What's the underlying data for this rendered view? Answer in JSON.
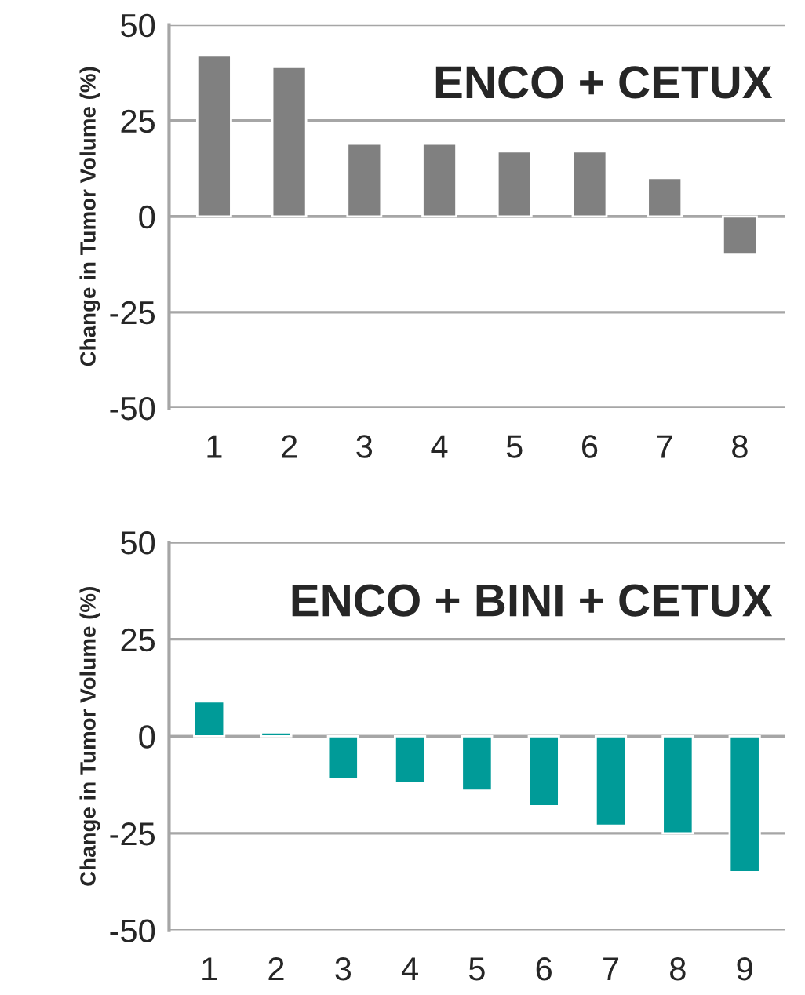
{
  "chart_data": [
    {
      "type": "bar",
      "title": "ENCO + CETUX",
      "ylabel": "Change in Tumor Volume (%)",
      "categories": [
        "1",
        "2",
        "3",
        "4",
        "5",
        "6",
        "7",
        "8"
      ],
      "series": [
        {
          "color": "#808080",
          "values": [
            42,
            39,
            19,
            19,
            17,
            17,
            10,
            -10
          ]
        }
      ],
      "ylim": [
        -50,
        50
      ],
      "yticks": [
        -50,
        -25,
        0,
        25,
        50
      ],
      "grid": "y",
      "legend": false
    },
    {
      "type": "bar",
      "title": "ENCO + BINI + CETUX",
      "ylabel": "Change in Tumor Volume (%)",
      "categories": [
        "1",
        "2",
        "3",
        "4",
        "5",
        "6",
        "7",
        "8",
        "9"
      ],
      "series": [
        {
          "color": "#009b98",
          "values": [
            9,
            1,
            -11,
            -12,
            -14,
            -18,
            -23,
            -25,
            -35
          ]
        }
      ],
      "ylim": [
        -50,
        50
      ],
      "yticks": [
        -50,
        -25,
        0,
        25,
        50
      ],
      "grid": "y",
      "legend": false
    }
  ]
}
